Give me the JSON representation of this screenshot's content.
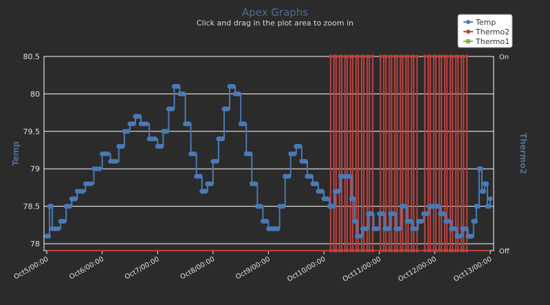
{
  "chart_data": {
    "type": "line",
    "title": "Apex Graphs",
    "subtitle": "Click and drag in the plot area to zoom in",
    "ylabel_left": "Temp",
    "ylabel_right": "Thermo2",
    "ylim_left": [
      78.0,
      80.5
    ],
    "y_ticks_left": [
      "78",
      "78.5",
      "79",
      "79.5",
      "80",
      "80.5"
    ],
    "y_ticks_right": [
      "Off",
      "On"
    ],
    "x_ticks": [
      "Oct5/00:00",
      "Oct6/00:00",
      "Oct7/00:00",
      "Oct8/00:00",
      "Oct9/00:00",
      "Oct10/00:00",
      "Oct11/00:00",
      "Oct12/00:00",
      "Oct13/00:00"
    ],
    "xlim": [
      0,
      8.0
    ],
    "x_unit": "days since Oct5/00:00",
    "legend": [
      "Temp",
      "Thermo2",
      "Thermo1"
    ],
    "legend_position": "top-right",
    "grid": true,
    "colors": {
      "background": "#2b2b2b",
      "plot_border": "#ffffff",
      "grid": "#ffffff",
      "temp": "#4a7ab5",
      "thermo2": "#c0413d",
      "thermo1": "#8fb04f",
      "title": "#4f6e93",
      "text": "#e0e0e0",
      "axis_title": "#4f6e93"
    },
    "series": [
      {
        "name": "Temp",
        "axis": "left",
        "points": [
          [
            0.0,
            78.1
          ],
          [
            0.05,
            78.5
          ],
          [
            0.1,
            78.2
          ],
          [
            0.25,
            78.3
          ],
          [
            0.35,
            78.5
          ],
          [
            0.45,
            78.6
          ],
          [
            0.55,
            78.7
          ],
          [
            0.7,
            78.8
          ],
          [
            0.85,
            79.0
          ],
          [
            1.0,
            79.2
          ],
          [
            1.15,
            79.1
          ],
          [
            1.3,
            79.3
          ],
          [
            1.4,
            79.5
          ],
          [
            1.5,
            79.6
          ],
          [
            1.6,
            79.7
          ],
          [
            1.7,
            79.6
          ],
          [
            1.85,
            79.4
          ],
          [
            2.0,
            79.3
          ],
          [
            2.1,
            79.5
          ],
          [
            2.2,
            79.8
          ],
          [
            2.3,
            80.1
          ],
          [
            2.4,
            80.0
          ],
          [
            2.5,
            79.6
          ],
          [
            2.6,
            79.2
          ],
          [
            2.7,
            78.9
          ],
          [
            2.8,
            78.7
          ],
          [
            2.9,
            78.8
          ],
          [
            3.0,
            79.1
          ],
          [
            3.1,
            79.4
          ],
          [
            3.2,
            79.8
          ],
          [
            3.3,
            80.1
          ],
          [
            3.4,
            80.0
          ],
          [
            3.5,
            79.6
          ],
          [
            3.6,
            79.2
          ],
          [
            3.7,
            78.8
          ],
          [
            3.8,
            78.5
          ],
          [
            3.9,
            78.3
          ],
          [
            4.0,
            78.2
          ],
          [
            4.1,
            78.2
          ],
          [
            4.2,
            78.5
          ],
          [
            4.3,
            78.9
          ],
          [
            4.4,
            79.2
          ],
          [
            4.5,
            79.3
          ],
          [
            4.6,
            79.1
          ],
          [
            4.7,
            78.9
          ],
          [
            4.8,
            78.8
          ],
          [
            4.9,
            78.7
          ],
          [
            5.0,
            78.6
          ],
          [
            5.1,
            78.5
          ],
          [
            5.2,
            78.7
          ],
          [
            5.3,
            78.9
          ],
          [
            5.4,
            78.9
          ],
          [
            5.5,
            78.6
          ],
          [
            5.55,
            78.3
          ],
          [
            5.6,
            78.1
          ],
          [
            5.7,
            78.2
          ],
          [
            5.8,
            78.4
          ],
          [
            5.9,
            78.2
          ],
          [
            6.0,
            78.4
          ],
          [
            6.1,
            78.2
          ],
          [
            6.2,
            78.4
          ],
          [
            6.3,
            78.2
          ],
          [
            6.4,
            78.5
          ],
          [
            6.5,
            78.3
          ],
          [
            6.6,
            78.2
          ],
          [
            6.7,
            78.3
          ],
          [
            6.8,
            78.4
          ],
          [
            6.9,
            78.5
          ],
          [
            7.0,
            78.5
          ],
          [
            7.1,
            78.4
          ],
          [
            7.2,
            78.3
          ],
          [
            7.3,
            78.2
          ],
          [
            7.4,
            78.1
          ],
          [
            7.5,
            78.2
          ],
          [
            7.6,
            78.1
          ],
          [
            7.7,
            78.3
          ],
          [
            7.75,
            78.5
          ],
          [
            7.8,
            79.0
          ],
          [
            7.85,
            78.7
          ],
          [
            7.9,
            78.8
          ],
          [
            7.95,
            78.5
          ],
          [
            8.0,
            78.6
          ]
        ]
      },
      {
        "name": "Thermo2",
        "axis": "right",
        "on_intervals": [
          [
            5.12,
            5.18
          ],
          [
            5.22,
            5.28
          ],
          [
            5.32,
            5.38
          ],
          [
            5.42,
            5.48
          ],
          [
            5.52,
            5.58
          ],
          [
            5.62,
            5.68
          ],
          [
            5.72,
            5.78
          ],
          [
            5.82,
            5.88
          ],
          [
            6.02,
            6.08
          ],
          [
            6.12,
            6.18
          ],
          [
            6.22,
            6.28
          ],
          [
            6.32,
            6.38
          ],
          [
            6.42,
            6.48
          ],
          [
            6.52,
            6.58
          ],
          [
            6.62,
            6.68
          ],
          [
            6.82,
            6.88
          ],
          [
            6.92,
            6.98
          ],
          [
            7.02,
            7.08
          ],
          [
            7.12,
            7.18
          ],
          [
            7.22,
            7.28
          ],
          [
            7.32,
            7.38
          ],
          [
            7.42,
            7.48
          ],
          [
            7.52,
            7.58
          ]
        ]
      },
      {
        "name": "Thermo1",
        "axis": "right",
        "on_intervals": []
      }
    ]
  }
}
